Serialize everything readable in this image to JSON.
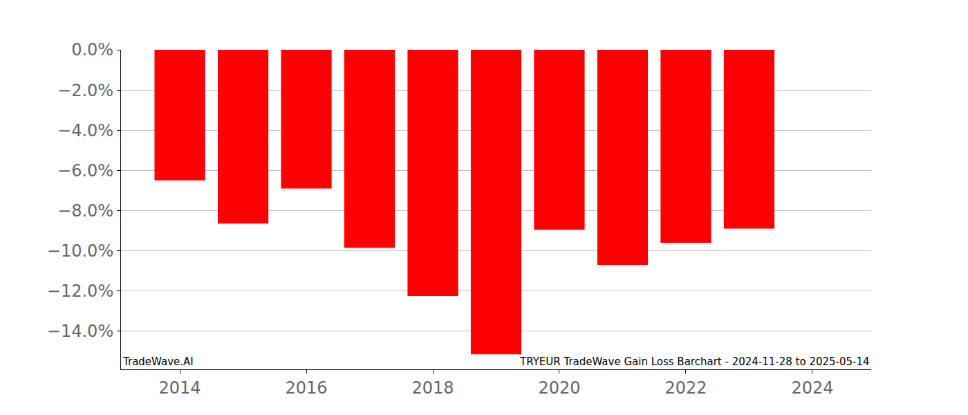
{
  "chart_data": {
    "type": "bar",
    "x": [
      2014,
      2015,
      2016,
      2017,
      2018,
      2019,
      2020,
      2021,
      2022,
      2023
    ],
    "values": [
      -6.5,
      -8.65,
      -6.9,
      -9.85,
      -12.25,
      -15.15,
      -8.95,
      -10.7,
      -9.6,
      -8.9
    ],
    "color": "#ff0000",
    "xlim": [
      2013.07,
      2024.93
    ],
    "xticks": [
      2014,
      2016,
      2018,
      2020,
      2022,
      2024
    ],
    "ylim": [
      -15.9,
      0
    ],
    "yticks": [
      {
        "value": 0,
        "label": "0.0%"
      },
      {
        "value": -2,
        "label": "−2.0%"
      },
      {
        "value": -4,
        "label": "−4.0%"
      },
      {
        "value": -6,
        "label": "−6.0%"
      },
      {
        "value": -8,
        "label": "−8.0%"
      },
      {
        "value": -10,
        "label": "−10.0%"
      },
      {
        "value": -12,
        "label": "−12.0%"
      },
      {
        "value": -14,
        "label": "−14.0%"
      }
    ],
    "grid": true,
    "annotations": [
      "TradeWave.AI",
      "TRYEUR TradeWave Gain Loss Barchart - 2024-11-28 to 2025-05-14"
    ]
  }
}
